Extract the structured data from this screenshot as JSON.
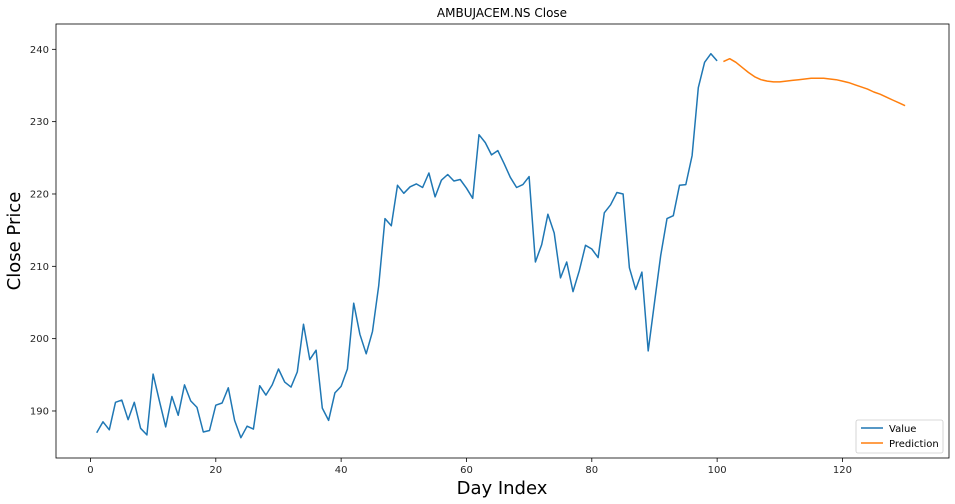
{
  "chart_data": {
    "type": "line",
    "title": "AMBUJACEM.NS Close",
    "xlabel": "Day Index",
    "ylabel": "Close Price",
    "xlim": [
      -5.5,
      137
    ],
    "ylim": [
      183.5,
      243.5
    ],
    "xticks": [
      0,
      20,
      40,
      60,
      80,
      100,
      120
    ],
    "yticks": [
      190,
      200,
      210,
      220,
      230,
      240
    ],
    "grid": false,
    "legend": "lower-right",
    "series": [
      {
        "name": "Value",
        "color": "#1f77b4",
        "x": [
          1,
          2,
          3,
          4,
          5,
          6,
          7,
          8,
          9,
          10,
          11,
          12,
          13,
          14,
          15,
          16,
          17,
          18,
          19,
          20,
          21,
          22,
          23,
          24,
          25,
          26,
          27,
          28,
          29,
          30,
          31,
          32,
          33,
          34,
          35,
          36,
          37,
          38,
          39,
          40,
          41,
          42,
          43,
          44,
          45,
          46,
          47,
          48,
          49,
          50,
          51,
          52,
          53,
          54,
          55,
          56,
          57,
          58,
          59,
          60,
          61,
          62,
          63,
          64,
          65,
          66,
          67,
          68,
          69,
          70,
          71,
          72,
          73,
          74,
          75,
          76,
          77,
          78,
          79,
          80,
          81,
          82,
          83,
          84,
          85,
          86,
          87,
          88,
          89,
          90,
          91,
          92,
          93,
          94,
          95,
          96,
          97,
          98,
          99,
          100
        ],
        "values": [
          187.0,
          188.5,
          187.4,
          191.2,
          191.5,
          188.8,
          191.2,
          187.6,
          186.7,
          195.1,
          191.4,
          187.8,
          192.0,
          189.4,
          193.6,
          191.4,
          190.5,
          187.1,
          187.3,
          190.8,
          191.1,
          193.2,
          188.7,
          186.3,
          187.9,
          187.5,
          193.5,
          192.2,
          193.6,
          195.8,
          194.0,
          193.3,
          195.4,
          202.0,
          197.1,
          198.4,
          190.4,
          188.7,
          192.5,
          193.4,
          195.8,
          204.9,
          200.6,
          197.9,
          201.0,
          207.3,
          216.6,
          215.6,
          221.2,
          220.1,
          221.0,
          221.4,
          220.9,
          222.9,
          219.6,
          221.9,
          222.7,
          221.8,
          222.0,
          220.8,
          219.4,
          228.2,
          227.1,
          225.4,
          226.0,
          224.2,
          222.3,
          220.9,
          221.3,
          222.4,
          210.6,
          213.0,
          217.2,
          214.6,
          208.4,
          210.6,
          206.5,
          209.4,
          212.9,
          212.4,
          211.2,
          217.4,
          218.5,
          220.2,
          220.0,
          209.8,
          206.8,
          209.2,
          198.3,
          205.0,
          211.5,
          216.6,
          217.0,
          221.2,
          221.3,
          225.3,
          234.7,
          238.2,
          239.4,
          238.4
        ]
      },
      {
        "name": "Prediction",
        "color": "#ff7f0e",
        "x": [
          101,
          102,
          103,
          104,
          105,
          106,
          107,
          108,
          109,
          110,
          111,
          112,
          113,
          114,
          115,
          116,
          117,
          118,
          119,
          120,
          121,
          122,
          123,
          124,
          125,
          126,
          127,
          128,
          129,
          130
        ],
        "values": [
          238.3,
          238.7,
          238.2,
          237.5,
          236.8,
          236.2,
          235.8,
          235.6,
          235.5,
          235.5,
          235.6,
          235.7,
          235.8,
          235.9,
          236.0,
          236.0,
          236.0,
          235.9,
          235.8,
          235.6,
          235.4,
          235.1,
          234.8,
          234.5,
          234.1,
          233.8,
          233.4,
          233.0,
          232.6,
          232.2
        ]
      }
    ]
  }
}
